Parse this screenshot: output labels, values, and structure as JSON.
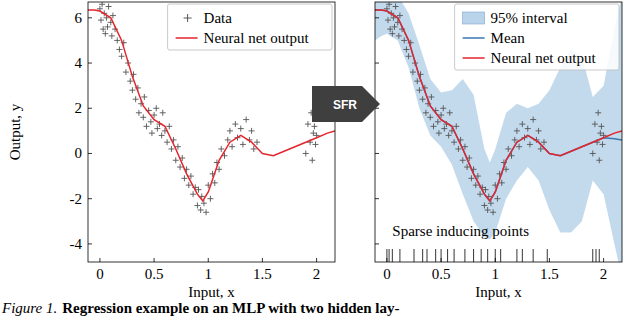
{
  "chart_data": [
    {
      "type": "line",
      "x_label": "Input, x",
      "y_label": "Output, y",
      "xlim": [
        -0.11,
        2.17
      ],
      "ylim": [
        -4.8,
        6.7
      ],
      "xticks": [
        0,
        0.5,
        1,
        1.5,
        2
      ],
      "yticks": [
        -4,
        -2,
        0,
        2,
        4,
        6
      ],
      "legend": "top-right",
      "series": [
        {
          "name": "Data",
          "type": "scatter",
          "marker": "plus",
          "color": "#555555",
          "x": [
            0,
            0.01,
            0.02,
            0.03,
            0.04,
            0.05,
            0.06,
            0.07,
            0.08,
            0.1,
            0.11,
            0.12,
            0.14,
            0.16,
            0.18,
            0.2,
            0.22,
            0.24,
            0.26,
            0.28,
            0.3,
            0.31,
            0.33,
            0.35,
            0.36,
            0.38,
            0.4,
            0.41,
            0.43,
            0.45,
            0.47,
            0.48,
            0.5,
            0.52,
            0.53,
            0.55,
            0.57,
            0.58,
            0.6,
            0.62,
            0.64,
            0.66,
            0.68,
            0.7,
            0.72,
            0.74,
            0.76,
            0.78,
            0.8,
            0.82,
            0.84,
            0.86,
            0.88,
            0.9,
            0.91,
            0.93,
            0.94,
            0.96,
            0.98,
            1.0,
            1.02,
            1.04,
            1.06,
            1.08,
            1.1,
            1.12,
            1.15,
            1.18,
            1.2,
            1.22,
            1.25,
            1.27,
            1.3,
            1.32,
            1.35,
            1.38,
            1.4,
            1.42,
            1.45,
            1.9,
            1.92,
            1.94,
            1.95,
            1.96,
            1.97,
            1.98,
            1.99,
            2.0
          ],
          "values": [
            6.4,
            5.9,
            6.6,
            5.5,
            6.2,
            5.3,
            6.0,
            5.6,
            6.5,
            5.8,
            5.2,
            6.1,
            5.5,
            5.0,
            4.6,
            4.3,
            4.9,
            3.6,
            4.0,
            3.2,
            2.8,
            3.5,
            2.4,
            2.9,
            1.8,
            2.2,
            1.6,
            2.5,
            1.2,
            1.9,
            1.4,
            0.9,
            1.7,
            2.0,
            1.1,
            1.3,
            0.8,
            1.8,
            1.0,
            0.5,
            1.2,
            0.2,
            0.6,
            -0.3,
            0.3,
            -0.6,
            -0.2,
            -1.1,
            -0.7,
            -1.4,
            -1.0,
            -1.8,
            -1.5,
            -2.3,
            -1.6,
            -2.5,
            -1.9,
            -2.2,
            -2.6,
            -1.4,
            -2.0,
            -0.9,
            -1.3,
            -0.4,
            -0.7,
            0.2,
            -0.1,
            0.6,
            1.0,
            0.3,
            1.3,
            0.7,
            1.1,
            0.4,
            1.5,
            0.6,
            1.0,
            0.2,
            0.5,
            0.0,
            1.3,
            0.5,
            1.8,
            -0.3,
            0.9,
            1.2,
            0.4,
            0.8
          ]
        },
        {
          "name": "Neural net output",
          "type": "line",
          "color": "#e3262d",
          "x": [
            -0.11,
            -0.05,
            0,
            0.1,
            0.2,
            0.3,
            0.4,
            0.5,
            0.6,
            0.7,
            0.8,
            0.9,
            0.95,
            1.0,
            1.1,
            1.2,
            1.3,
            1.4,
            1.5,
            1.6,
            1.7,
            1.8,
            1.9,
            2.0,
            2.1,
            2.17
          ],
          "values": [
            6.35,
            6.35,
            6.3,
            6.0,
            5.0,
            3.4,
            2.1,
            1.5,
            1.2,
            0.2,
            -0.9,
            -1.8,
            -2.1,
            -1.7,
            -0.3,
            0.5,
            0.8,
            0.5,
            0.0,
            -0.1,
            0.1,
            0.3,
            0.5,
            0.7,
            0.9,
            1.0
          ]
        }
      ]
    },
    {
      "type": "line",
      "x_label": "Input, x",
      "xlim": [
        -0.11,
        2.17
      ],
      "ylim": [
        -4.8,
        6.7
      ],
      "xticks": [
        0,
        0.5,
        1,
        1.5,
        2
      ],
      "yticks": [
        -4,
        -2,
        0,
        2,
        4,
        6
      ],
      "tick_labels": "x",
      "legend": "top-right",
      "annotation": "Sparse inducing points",
      "inducing_points": [
        0.0,
        0.02,
        0.05,
        0.12,
        0.25,
        0.33,
        0.37,
        0.45,
        0.5,
        0.56,
        0.62,
        0.72,
        0.8,
        0.87,
        0.93,
        1.0,
        1.05,
        1.2,
        1.25,
        1.35,
        1.48,
        1.9,
        1.93,
        1.96
      ],
      "series": [
        {
          "name": "95% interval",
          "type": "band",
          "color": "#b9d3ea",
          "x": [
            -0.11,
            -0.05,
            0,
            0.1,
            0.2,
            0.3,
            0.4,
            0.5,
            0.6,
            0.7,
            0.8,
            0.9,
            0.95,
            1.0,
            1.1,
            1.2,
            1.3,
            1.4,
            1.5,
            1.6,
            1.7,
            1.8,
            1.9,
            2.0,
            2.1,
            2.17
          ],
          "lower": [
            5.0,
            5.2,
            5.3,
            5.0,
            3.8,
            2.0,
            0.8,
            0.3,
            -0.5,
            -1.8,
            -3.0,
            -3.7,
            -3.8,
            -3.5,
            -2.0,
            -1.2,
            -0.6,
            -1.2,
            -2.5,
            -3.5,
            -3.5,
            -3.0,
            -1.2,
            -1.8,
            -4.0,
            -5.5
          ],
          "upper": [
            7.2,
            7.3,
            7.2,
            7.0,
            6.2,
            4.8,
            3.3,
            2.7,
            2.8,
            3.3,
            2.6,
            0.2,
            -0.4,
            0.2,
            1.8,
            2.2,
            2.0,
            2.2,
            2.8,
            3.8,
            4.6,
            4.3,
            2.5,
            3.0,
            5.5,
            7.0
          ]
        },
        {
          "type": "scatter",
          "marker": "plus",
          "color": "#555555",
          "x": [
            0,
            0.01,
            0.02,
            0.03,
            0.04,
            0.05,
            0.06,
            0.07,
            0.08,
            0.1,
            0.11,
            0.12,
            0.14,
            0.16,
            0.18,
            0.2,
            0.22,
            0.24,
            0.26,
            0.28,
            0.3,
            0.31,
            0.33,
            0.35,
            0.36,
            0.38,
            0.4,
            0.41,
            0.43,
            0.45,
            0.47,
            0.48,
            0.5,
            0.52,
            0.53,
            0.55,
            0.57,
            0.58,
            0.6,
            0.62,
            0.64,
            0.66,
            0.68,
            0.7,
            0.72,
            0.74,
            0.76,
            0.78,
            0.8,
            0.82,
            0.84,
            0.86,
            0.88,
            0.9,
            0.91,
            0.93,
            0.94,
            0.96,
            0.98,
            1.0,
            1.02,
            1.04,
            1.06,
            1.08,
            1.1,
            1.12,
            1.15,
            1.18,
            1.2,
            1.22,
            1.25,
            1.27,
            1.3,
            1.32,
            1.35,
            1.38,
            1.4,
            1.42,
            1.45,
            1.9,
            1.92,
            1.94,
            1.95,
            1.96,
            1.97,
            1.98,
            1.99,
            2.0
          ],
          "values": [
            6.4,
            5.9,
            6.6,
            5.5,
            6.2,
            5.3,
            6.0,
            5.6,
            6.5,
            5.8,
            5.2,
            6.1,
            5.5,
            5.0,
            4.6,
            4.3,
            4.9,
            3.6,
            4.0,
            3.2,
            2.8,
            3.5,
            2.4,
            2.9,
            1.8,
            2.2,
            1.6,
            2.5,
            1.2,
            1.9,
            1.4,
            0.9,
            1.7,
            2.0,
            1.1,
            1.3,
            0.8,
            1.8,
            1.0,
            0.5,
            1.2,
            0.2,
            0.6,
            -0.3,
            0.3,
            -0.6,
            -0.2,
            -1.1,
            -0.7,
            -1.4,
            -1.0,
            -1.8,
            -1.5,
            -2.3,
            -1.6,
            -2.5,
            -1.9,
            -2.2,
            -2.6,
            -1.4,
            -2.0,
            -0.9,
            -1.3,
            -0.4,
            -0.7,
            0.2,
            -0.1,
            0.6,
            1.0,
            0.3,
            1.3,
            0.7,
            1.1,
            0.4,
            1.5,
            0.6,
            1.0,
            0.2,
            0.5,
            0.0,
            1.3,
            0.5,
            1.8,
            -0.3,
            0.9,
            1.2,
            0.4,
            0.8
          ]
        },
        {
          "name": "Mean",
          "type": "line",
          "color": "#3a76b0",
          "x": [
            -0.11,
            -0.05,
            0,
            0.1,
            0.2,
            0.3,
            0.4,
            0.5,
            0.6,
            0.7,
            0.8,
            0.9,
            0.95,
            1.0,
            1.1,
            1.2,
            1.3,
            1.4,
            1.5,
            1.6,
            1.7,
            1.8,
            1.9,
            2.0,
            2.1,
            2.17
          ],
          "values": [
            6.35,
            6.35,
            6.3,
            6.0,
            5.0,
            3.4,
            2.1,
            1.5,
            1.2,
            0.2,
            -0.9,
            -1.8,
            -2.1,
            -1.7,
            -0.3,
            0.5,
            0.8,
            0.5,
            0.0,
            -0.1,
            0.1,
            0.3,
            0.5,
            0.7,
            0.65,
            0.6
          ]
        },
        {
          "name": "Neural net output",
          "type": "line",
          "color": "#e3262d",
          "x": [
            -0.11,
            -0.05,
            0,
            0.1,
            0.2,
            0.3,
            0.4,
            0.5,
            0.6,
            0.7,
            0.8,
            0.9,
            0.95,
            1.0,
            1.1,
            1.2,
            1.3,
            1.4,
            1.5,
            1.6,
            1.7,
            1.8,
            1.9,
            2.0,
            2.1,
            2.17
          ],
          "values": [
            6.35,
            6.35,
            6.3,
            6.0,
            5.0,
            3.4,
            2.1,
            1.5,
            1.2,
            0.2,
            -0.9,
            -1.8,
            -2.1,
            -1.7,
            -0.3,
            0.5,
            0.8,
            0.5,
            0.0,
            -0.1,
            0.1,
            0.3,
            0.5,
            0.7,
            0.9,
            1.0
          ]
        }
      ]
    }
  ],
  "arrow_label": "SFR",
  "caption": {
    "label": "Figure 1.",
    "text": "Regression example on an MLP with two hidden lay-"
  }
}
